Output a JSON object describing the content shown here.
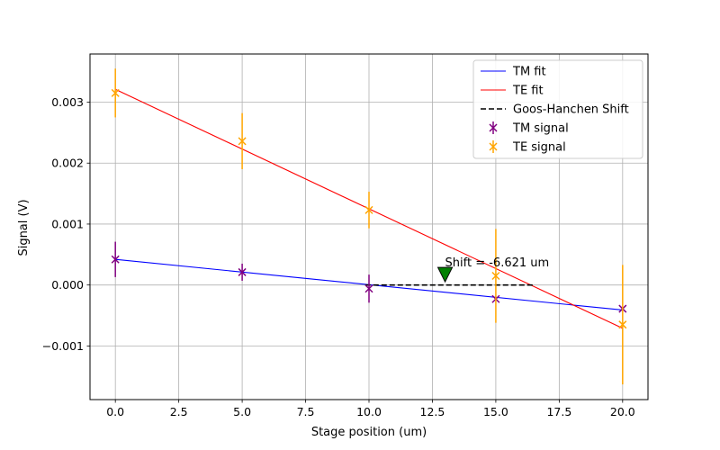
{
  "chart_data": {
    "type": "scatter",
    "title": "",
    "xlabel": "Stage position (um)",
    "ylabel": "Signal (V)",
    "xlim": [
      -1.0,
      21.0
    ],
    "ylim": [
      -0.00188,
      0.00379
    ],
    "x_ticks": [
      0.0,
      2.5,
      5.0,
      7.5,
      10.0,
      12.5,
      15.0,
      17.5,
      20.0
    ],
    "x_tick_labels": [
      "0.0",
      "2.5",
      "5.0",
      "7.5",
      "10.0",
      "12.5",
      "15.0",
      "17.5",
      "20.0"
    ],
    "y_ticks": [
      -0.001,
      0.0,
      0.001,
      0.002,
      0.003
    ],
    "y_tick_labels": [
      "−0.001",
      "0.000",
      "0.001",
      "0.002",
      "0.003"
    ],
    "grid": true,
    "legend_position": "upper right",
    "legend": {
      "entries": [
        {
          "label": "TM fit",
          "kind": "line",
          "color": "#0000ff",
          "dash": false
        },
        {
          "label": "TE fit",
          "kind": "line",
          "color": "#ff0000",
          "dash": false
        },
        {
          "label": "Goos-Hanchen Shift",
          "kind": "line",
          "color": "#000000",
          "dash": true
        },
        {
          "label": "TM signal",
          "kind": "marker",
          "color": "#800080",
          "dash": false
        },
        {
          "label": "TE signal",
          "kind": "marker",
          "color": "#ffa500",
          "dash": false
        }
      ]
    },
    "series": [
      {
        "name": "TM signal",
        "kind": "errorbar",
        "marker": "x",
        "color": "#800080",
        "x": [
          0,
          5,
          10,
          15,
          20
        ],
        "y": [
          0.00042,
          0.00021,
          -6e-05,
          -0.00023,
          -0.00039
        ],
        "yerr": [
          0.00029,
          0.00014,
          0.00023,
          0.0,
          0.0
        ]
      },
      {
        "name": "TE signal",
        "kind": "errorbar",
        "marker": "x",
        "color": "#ffa500",
        "x": [
          0,
          5,
          10,
          15,
          20
        ],
        "y": [
          0.00315,
          0.00236,
          0.00123,
          0.00015,
          -0.00065
        ],
        "yerr": [
          0.0004,
          0.00046,
          0.0003,
          0.00077,
          0.00098
        ]
      },
      {
        "name": "TM fit",
        "kind": "line",
        "color": "#0000ff",
        "x": [
          0,
          20
        ],
        "y": [
          0.00042,
          -0.00041
        ]
      },
      {
        "name": "TE fit",
        "kind": "line",
        "color": "#ff0000",
        "x": [
          0,
          20
        ],
        "y": [
          0.00321,
          -0.00071
        ]
      },
      {
        "name": "Goos-Hanchen Shift",
        "kind": "dashed",
        "color": "#000000",
        "x": [
          9.85,
          16.5
        ],
        "y": [
          0.0,
          0.0
        ]
      }
    ],
    "annotations": [
      {
        "text": "Shift = -6.621 um",
        "x": 13.0,
        "y": 0.00038,
        "marker": "triangle-down",
        "marker_x": 13.0,
        "marker_y": 0.00017,
        "marker_color": "#008000"
      }
    ]
  }
}
